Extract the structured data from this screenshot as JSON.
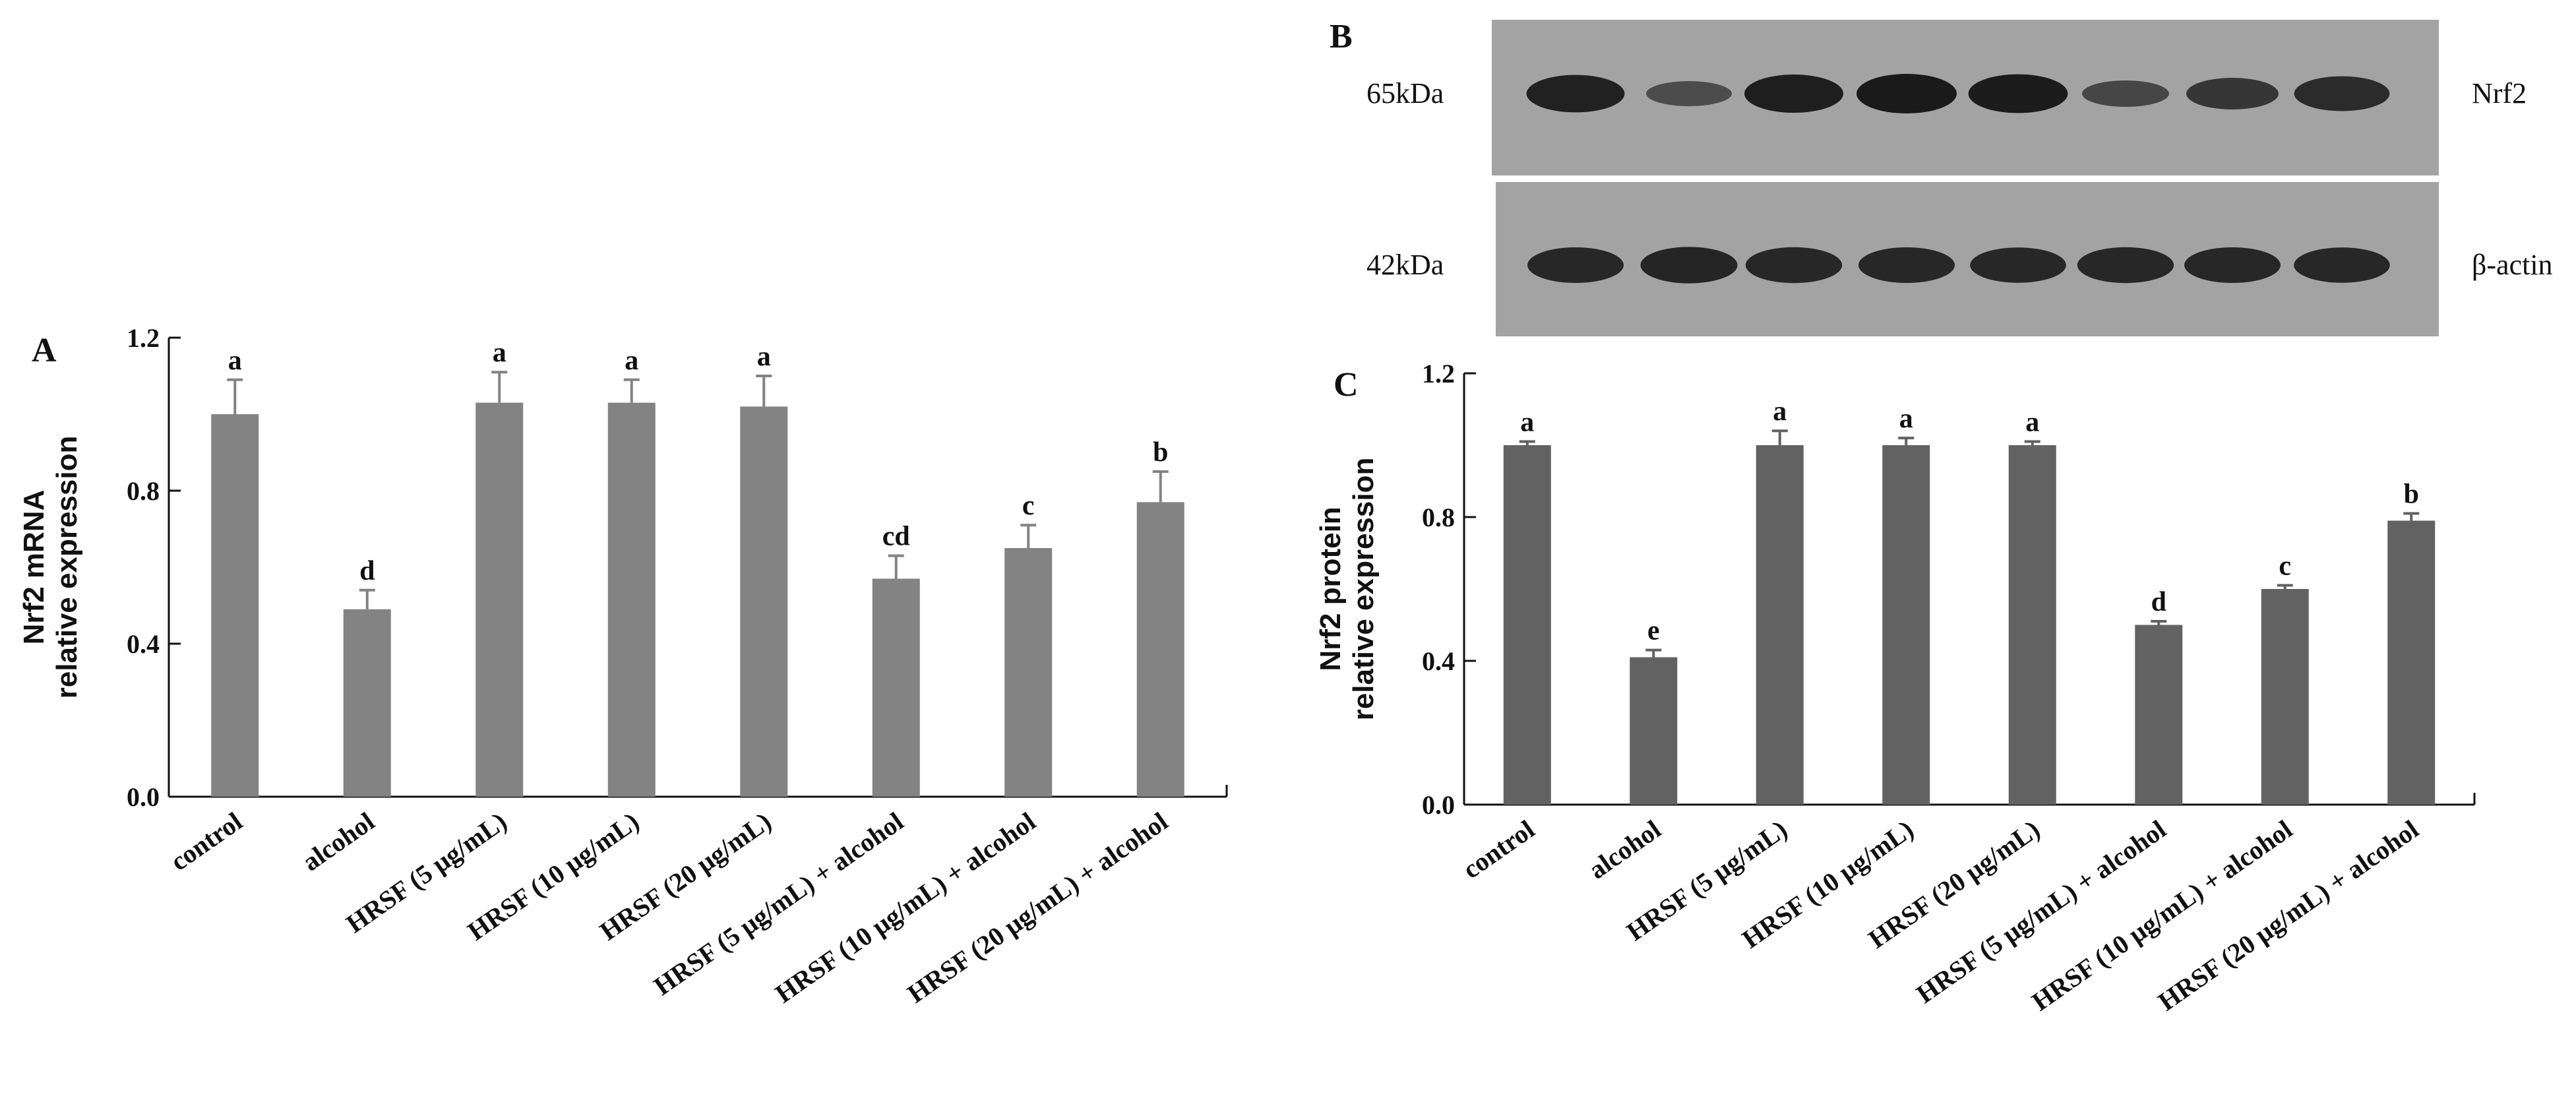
{
  "panels": {
    "a": {
      "letter": "A"
    },
    "b": {
      "letter": "B"
    },
    "c": {
      "letter": "C"
    }
  },
  "blot": {
    "rows": [
      {
        "kda": "65kDa",
        "protein": "Nrf2",
        "intensities": [
          0.92,
          0.45,
          0.95,
          1.0,
          0.97,
          0.5,
          0.7,
          0.82
        ]
      },
      {
        "kda": "42kDa",
        "protein": "β-actin",
        "intensities": [
          0.85,
          0.88,
          0.86,
          0.85,
          0.84,
          0.86,
          0.85,
          0.84
        ]
      }
    ],
    "colors": {
      "membrane": "#a3a3a3",
      "band": "#1a1a1a"
    }
  },
  "chart_data": [
    {
      "panel": "A",
      "type": "bar",
      "ylabel_lines": [
        "Nrf2 mRNA",
        "relative expression"
      ],
      "ylim": [
        0,
        1.2
      ],
      "yticks": [
        "0.0",
        "0.4",
        "0.8",
        "1.2"
      ],
      "categories": [
        "control",
        "alcohol",
        "HRSF (5 μg/mL)",
        "HRSF (10 μg/mL)",
        "HRSF (20 μg/mL)",
        "HRSF (5 μg/mL) + alcohol",
        "HRSF (10 μg/mL) + alcohol",
        "HRSF (20 μg/mL) + alcohol"
      ],
      "values": [
        1.0,
        0.49,
        1.03,
        1.03,
        1.02,
        0.57,
        0.65,
        0.77
      ],
      "errors": [
        0.09,
        0.05,
        0.08,
        0.06,
        0.08,
        0.06,
        0.06,
        0.08
      ],
      "significance": [
        "a",
        "d",
        "a",
        "a",
        "a",
        "cd",
        "c",
        "b"
      ],
      "bar_color": "#838383"
    },
    {
      "panel": "C",
      "type": "bar",
      "ylabel_lines": [
        "Nrf2 protein",
        "relative expression"
      ],
      "ylim": [
        0,
        1.2
      ],
      "yticks": [
        "0.0",
        "0.4",
        "0.8",
        "1.2"
      ],
      "categories": [
        "control",
        "alcohol",
        "HRSF (5 μg/mL)",
        "HRSF (10 μg/mL)",
        "HRSF (20 μg/mL)",
        "HRSF (5 μg/mL) + alcohol",
        "HRSF (10 μg/mL) + alcohol",
        "HRSF (20 μg/mL) + alcohol"
      ],
      "values": [
        1.0,
        0.41,
        1.0,
        1.0,
        1.0,
        0.5,
        0.6,
        0.79
      ],
      "errors": [
        0.01,
        0.02,
        0.04,
        0.02,
        0.01,
        0.01,
        0.01,
        0.02
      ],
      "significance": [
        "a",
        "e",
        "a",
        "a",
        "a",
        "d",
        "c",
        "b"
      ],
      "bar_color": "#626262"
    }
  ]
}
